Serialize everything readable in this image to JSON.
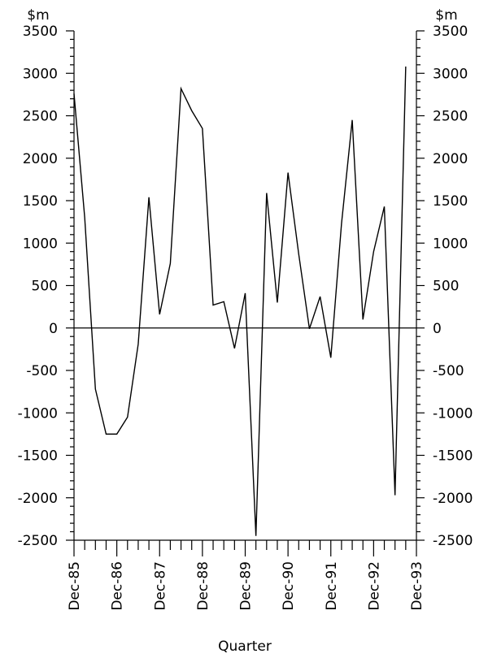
{
  "chart_data": {
    "type": "line",
    "title": "",
    "xlabel": "Quarter",
    "ylabel_left": "$m",
    "ylabel_right": "$m",
    "ylim": [
      -2500,
      3500
    ],
    "ytick_step": 500,
    "yminor_step": 100,
    "yticks": [
      "3500",
      "3000",
      "2500",
      "2000",
      "1500",
      "1000",
      "500",
      "0",
      "-500",
      "-1000",
      "-1500",
      "-2000",
      "-2500"
    ],
    "x_tick_labels": [
      "Dec-85",
      "Dec-86",
      "Dec-87",
      "Dec-88",
      "Dec-89",
      "Dec-90",
      "Dec-91",
      "Dec-92",
      "Dec-93"
    ],
    "x_quarters_count": 33,
    "zero_line": true,
    "grid": false,
    "legend": "none",
    "line_color": "#000000",
    "series": [
      {
        "x": [
          "Dec-85",
          "Mar-86",
          "Jun-86",
          "Sep-86",
          "Dec-86",
          "Mar-87",
          "Jun-87",
          "Sep-87",
          "Dec-87",
          "Mar-88",
          "Jun-88",
          "Sep-88",
          "Dec-88",
          "Mar-89",
          "Jun-89",
          "Sep-89",
          "Dec-89",
          "Mar-90",
          "Jun-90",
          "Sep-90",
          "Dec-90",
          "Mar-91",
          "Jun-91",
          "Sep-91",
          "Dec-91",
          "Mar-92",
          "Jun-92",
          "Sep-92",
          "Dec-92",
          "Mar-93",
          "Jun-93",
          "Sep-93"
        ],
        "values": [
          2760,
          1300,
          -720,
          -1250,
          -1250,
          -1050,
          -190,
          1540,
          160,
          760,
          2820,
          2560,
          2350,
          270,
          310,
          -240,
          410,
          -2450,
          1590,
          300,
          1830,
          870,
          -10,
          370,
          -350,
          1230,
          2450,
          100,
          900,
          1430,
          -1970,
          3080
        ]
      }
    ]
  }
}
